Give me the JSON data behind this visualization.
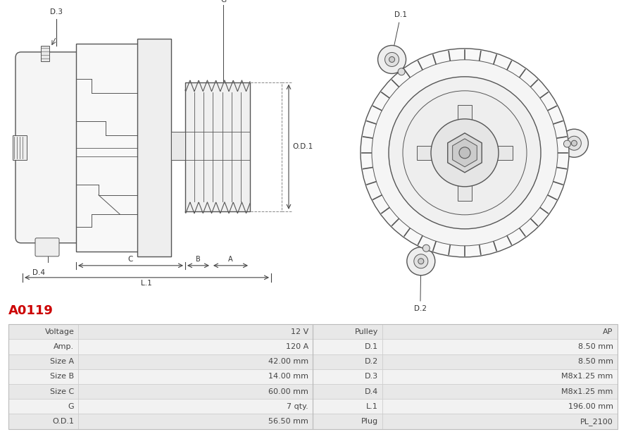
{
  "title": "A0119",
  "title_color": "#cc0000",
  "table_data": [
    [
      "Voltage",
      "12 V",
      "Pulley",
      "AP"
    ],
    [
      "Amp.",
      "120 A",
      "D.1",
      "8.50 mm"
    ],
    [
      "Size A",
      "42.00 mm",
      "D.2",
      "8.50 mm"
    ],
    [
      "Size B",
      "14.00 mm",
      "D.3",
      "M8x1.25 mm"
    ],
    [
      "Size C",
      "60.00 mm",
      "D.4",
      "M8x1.25 mm"
    ],
    [
      "G",
      "7 qty.",
      "L.1",
      "196.00 mm"
    ],
    [
      "O.D.1",
      "56.50 mm",
      "Plug",
      "PL_2100"
    ]
  ],
  "bg_color": "#ffffff",
  "text_color": "#555555",
  "line_color": "#555555",
  "row_colors": [
    "#e8e8e8",
    "#f2f2f2"
  ],
  "table_border": "#cccccc",
  "font_size": 8.5
}
